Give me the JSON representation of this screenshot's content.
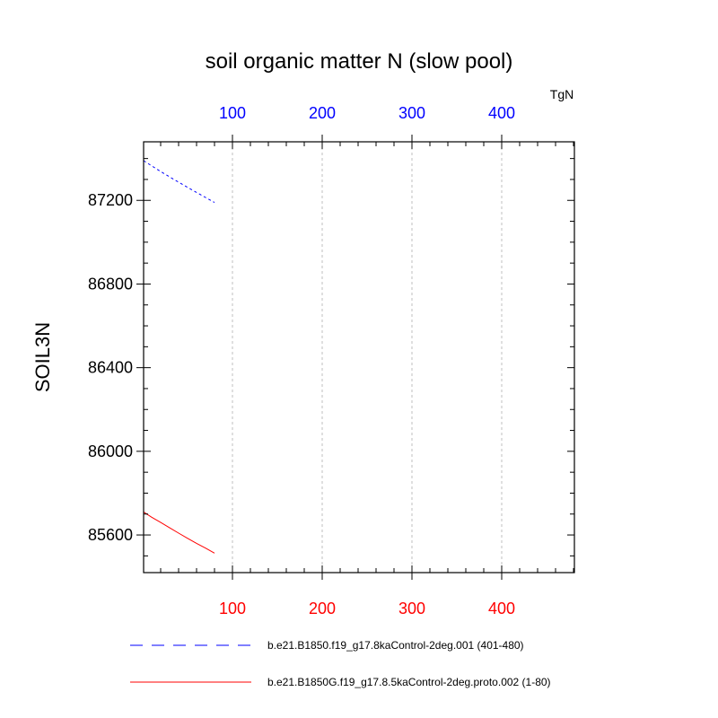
{
  "chart_data": {
    "type": "line",
    "title": "soil organic matter N (slow pool)",
    "ylabel": "SOIL3N",
    "top_axis_units": "TgN",
    "ylim": [
      85420,
      87480
    ],
    "yticks": [
      85600,
      86000,
      86400,
      86800,
      87200
    ],
    "ytick_labels": [
      "85600",
      "86000",
      "86400",
      "86800",
      "87200"
    ],
    "xlim": [
      1,
      481
    ],
    "top_xticks": [
      100,
      200,
      300,
      400
    ],
    "top_xtick_labels": [
      "100",
      "200",
      "300",
      "400"
    ],
    "bottom_xticks": [
      100,
      200,
      300,
      400
    ],
    "bottom_xtick_labels": [
      "100",
      "200",
      "300",
      "400"
    ],
    "grid": "vertical-dashed",
    "series": [
      {
        "name": "b.e21.B1850.f19_g17.8kaControl-2deg.001 (401-480)",
        "color": "#0000ff",
        "dash": "dashed",
        "x": [
          1,
          10,
          20,
          30,
          40,
          50,
          60,
          70,
          80
        ],
        "values": [
          87390,
          87365,
          87338,
          87312,
          87287,
          87262,
          87238,
          87214,
          87190
        ]
      },
      {
        "name": "b.e21.B1850G.f19_g17.8.5kaControl-2deg.proto.002 (1-80)",
        "color": "#ff0000",
        "dash": "solid",
        "x": [
          1,
          10,
          20,
          30,
          40,
          50,
          60,
          70,
          80
        ],
        "values": [
          85710,
          85685,
          85660,
          85634,
          85609,
          85584,
          85560,
          85537,
          85513
        ]
      }
    ]
  },
  "colors": {
    "top_axis_labels": "#0000ff",
    "bottom_axis_labels": "#ff0000",
    "frame": "#000000",
    "grid": "#b0b0b0"
  }
}
